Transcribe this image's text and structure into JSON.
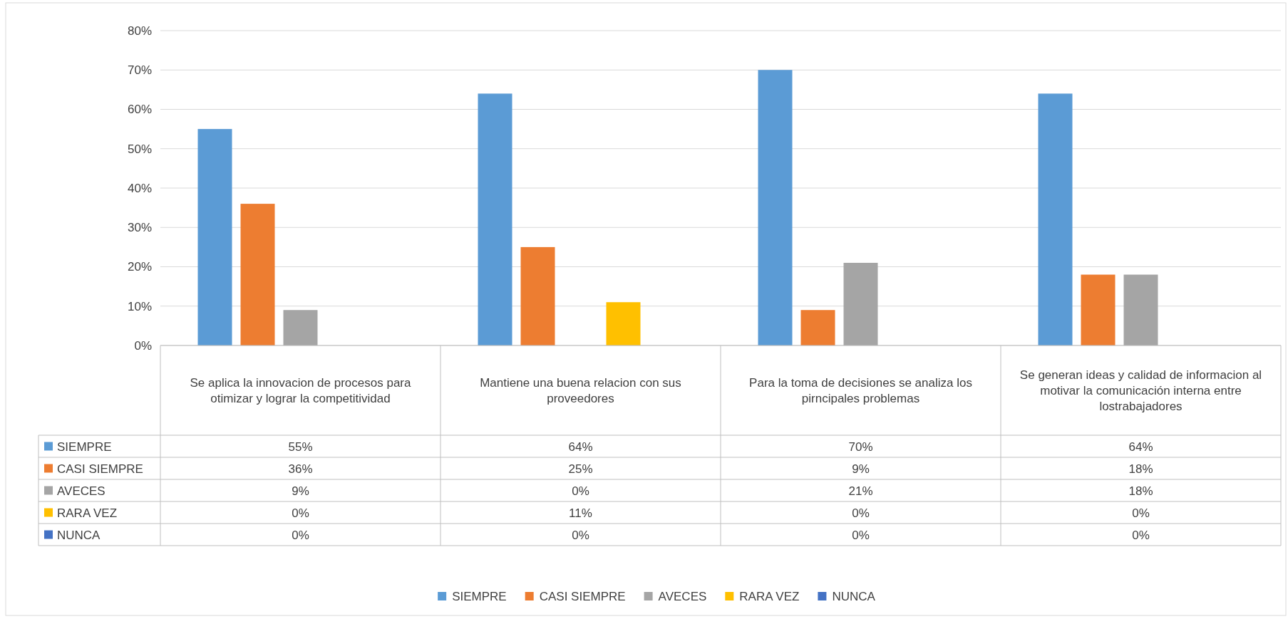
{
  "chart_data": {
    "type": "bar",
    "categories": [
      "Se aplica la innovacion de procesos para otimizar y lograr la competitividad",
      "Mantiene una buena relacion con sus proveedores",
      "Para la toma de decisiones se analiza los pirncipales problemas",
      "Se generan ideas y calidad de informacion al motivar la comunicación interna entre lostrabajadores"
    ],
    "series": [
      {
        "name": "SIEMPRE",
        "color": "#5b9bd5",
        "values": [
          55,
          64,
          70,
          64
        ],
        "value_labels": [
          "55%",
          "64%",
          "70%",
          "64%"
        ]
      },
      {
        "name": "CASI SIEMPRE",
        "color": "#ed7d31",
        "values": [
          36,
          25,
          9,
          18
        ],
        "value_labels": [
          "36%",
          "25%",
          "9%",
          "18%"
        ]
      },
      {
        "name": "AVECES",
        "color": "#a5a5a5",
        "values": [
          9,
          0,
          21,
          18
        ],
        "value_labels": [
          "9%",
          "0%",
          "21%",
          "18%"
        ]
      },
      {
        "name": "RARA VEZ",
        "color": "#ffc000",
        "values": [
          0,
          11,
          0,
          0
        ],
        "value_labels": [
          "0%",
          "11%",
          "0%",
          "0%"
        ]
      },
      {
        "name": "NUNCA",
        "color": "#4472c4",
        "values": [
          0,
          0,
          0,
          0
        ],
        "value_labels": [
          "0%",
          "0%",
          "0%",
          "0%"
        ]
      }
    ],
    "ylim": [
      0,
      80
    ],
    "yticks": [
      {
        "value": 0,
        "label": "0%"
      },
      {
        "value": 10,
        "label": "10%"
      },
      {
        "value": 20,
        "label": "20%"
      },
      {
        "value": 30,
        "label": "30%"
      },
      {
        "value": 40,
        "label": "40%"
      },
      {
        "value": 50,
        "label": "50%"
      },
      {
        "value": 60,
        "label": "60%"
      },
      {
        "value": 70,
        "label": "70%"
      },
      {
        "value": 80,
        "label": "80%"
      }
    ],
    "grid": "y",
    "legend": "bottom"
  }
}
